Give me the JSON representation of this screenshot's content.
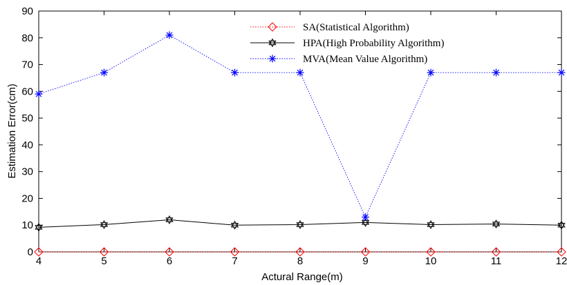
{
  "chart_data": {
    "type": "line",
    "xlabel": "Actural Range(m)",
    "ylabel": "Estimation Error(cm)",
    "x": [
      4,
      5,
      6,
      7,
      8,
      9,
      10,
      11,
      12
    ],
    "xlim": [
      4,
      12
    ],
    "ylim": [
      0,
      90
    ],
    "xticks": [
      "4",
      "5",
      "6",
      "7",
      "8",
      "9",
      "10",
      "11",
      "12"
    ],
    "yticks": [
      "0",
      "10",
      "20",
      "30",
      "40",
      "50",
      "60",
      "70",
      "80",
      "90"
    ],
    "grid": false,
    "legend_position": "top-center",
    "series": [
      {
        "name": "SA(Statistical Algorithm)",
        "marker": "diamond",
        "line_style": "dotted",
        "color": "#ff0000",
        "values": [
          0,
          0,
          0,
          0,
          0,
          0,
          0,
          0,
          0
        ]
      },
      {
        "name": "HPA(High Probability Algorithm)",
        "marker": "hexagram",
        "line_style": "solid",
        "color": "#000000",
        "values": [
          9.2,
          10.2,
          12,
          10,
          10.2,
          11,
          10.2,
          10.4,
          10
        ]
      },
      {
        "name": "MVA(Mean Value Algorithm)",
        "marker": "asterisk",
        "line_style": "dotted",
        "color": "#0000ff",
        "values": [
          59,
          67,
          81,
          67,
          67,
          13,
          67,
          67,
          67
        ]
      }
    ]
  }
}
